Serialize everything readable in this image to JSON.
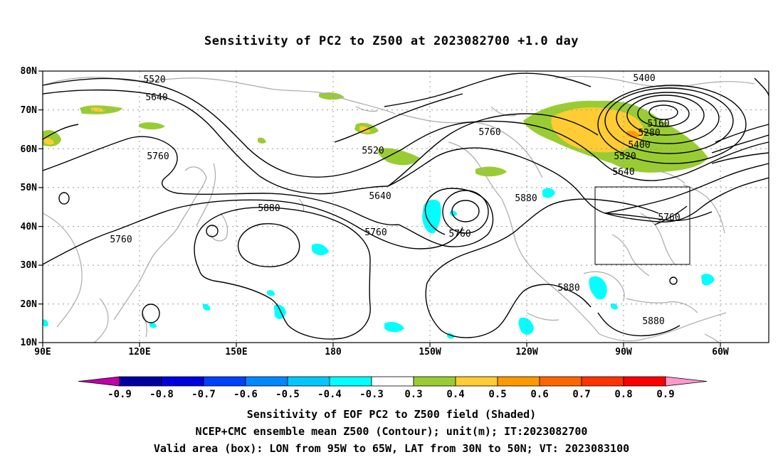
{
  "title": "Sensitivity of PC2 to Z500 at 2023082700 +1.0 day",
  "axes": {
    "lat_labels": [
      "80N",
      "70N",
      "60N",
      "50N",
      "40N",
      "30N",
      "20N",
      "10N"
    ],
    "lon_labels": [
      "90E",
      "120E",
      "150E",
      "180",
      "150W",
      "120W",
      "90W",
      "60W"
    ]
  },
  "contour_labels": [
    {
      "id": "c5520a",
      "text": "5520"
    },
    {
      "id": "c5640a",
      "text": "5640"
    },
    {
      "id": "c5760a",
      "text": "5760"
    },
    {
      "id": "c5760b",
      "text": "5760"
    },
    {
      "id": "c5880a",
      "text": "5880"
    },
    {
      "id": "c5520b",
      "text": "5520"
    },
    {
      "id": "c5640b",
      "text": "5640"
    },
    {
      "id": "c5760c",
      "text": "5760"
    },
    {
      "id": "c5760d",
      "text": "5760"
    },
    {
      "id": "c5760e",
      "text": "5760"
    },
    {
      "id": "c5880b",
      "text": "5880"
    },
    {
      "id": "c5880c",
      "text": "5880"
    },
    {
      "id": "c5880d",
      "text": "5880"
    },
    {
      "id": "c5400a",
      "text": "5400"
    },
    {
      "id": "c5160",
      "text": "5160"
    },
    {
      "id": "c5280",
      "text": "5280"
    },
    {
      "id": "c5400b",
      "text": "5400"
    },
    {
      "id": "c5520c",
      "text": "5520"
    },
    {
      "id": "c5640c",
      "text": "5640"
    },
    {
      "id": "c5760f",
      "text": "5760"
    }
  ],
  "colorbar": {
    "ticks": [
      "-0.9",
      "-0.8",
      "-0.7",
      "-0.6",
      "-0.5",
      "-0.4",
      "-0.3",
      "0.3",
      "0.4",
      "0.5",
      "0.6",
      "0.7",
      "0.8",
      "0.9"
    ],
    "colors": {
      "neg_09": "#c000a8",
      "neg_08": "#0000a0",
      "neg_07": "#0000e0",
      "neg_06": "#0040ff",
      "neg_05": "#0088ff",
      "neg_04": "#00c8ff",
      "neg_03": "#00ffff",
      "neutral": "#ffffff",
      "pos_03": "#99cc33",
      "pos_04": "#ffcc33",
      "pos_05": "#ff9900",
      "pos_06": "#ff6600",
      "pos_07": "#ff3300",
      "pos_08": "#ff0000",
      "pos_09": "#ff99cc"
    }
  },
  "captions": {
    "line1": "Sensitivity of EOF PC2 to Z500 field (Shaded)",
    "line2": "NCEP+CMC ensemble mean Z500 (Contour); unit(m); IT:2023082700",
    "line3": "Valid area (box): LON from 95W to 65W, LAT from 30N to 50N; VT: 2023083100"
  },
  "valid_area": {
    "lon_min": -95,
    "lon_max": -65,
    "lat_min": 30,
    "lat_max": 50
  }
}
